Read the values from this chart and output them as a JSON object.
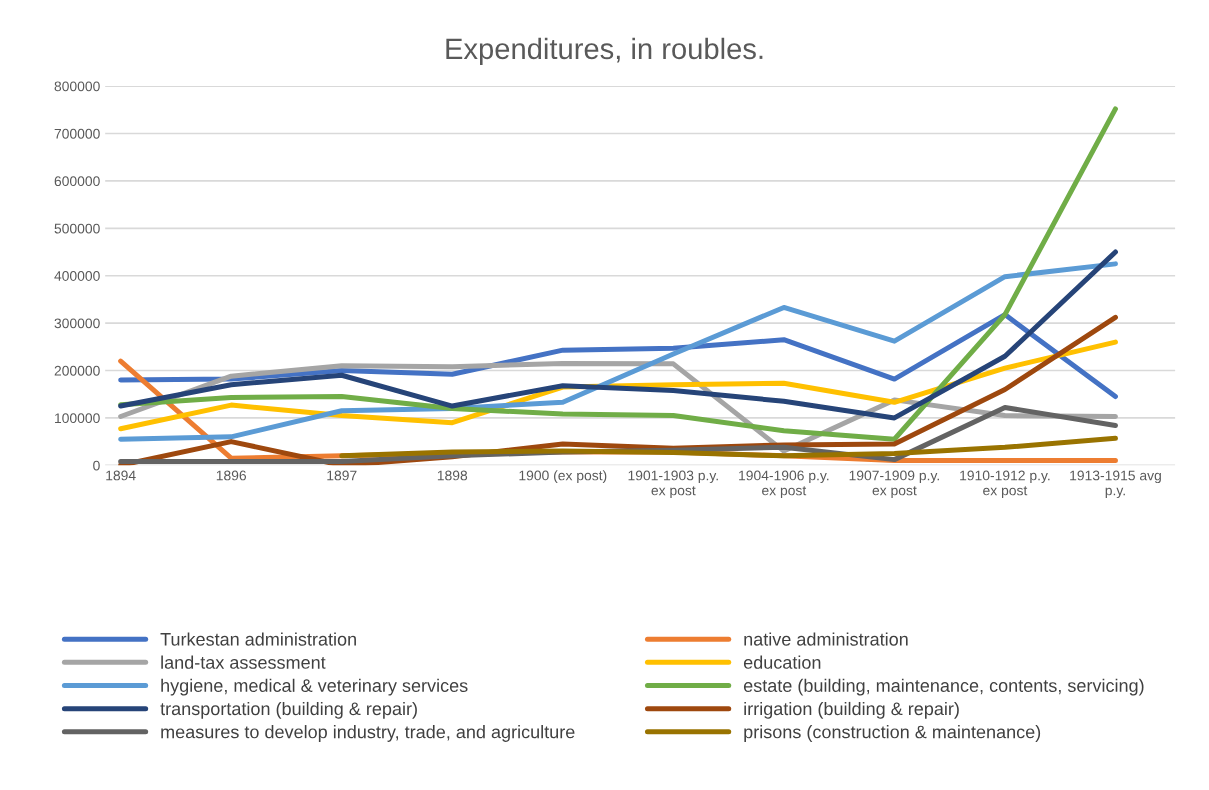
{
  "chart_data": {
    "type": "line",
    "title": "Expenditures, in roubles.",
    "categories": [
      "1894",
      "1896",
      "1897",
      "1898",
      "1900 (ex post)",
      "1901-1903 p.y.\nex post",
      "1904-1906 p.y.\nex post",
      "1907-1909 p.y.\nex post",
      "1910-1912 p.y.\nex post",
      "1913-1915 avg\np.y."
    ],
    "series": [
      {
        "name": "Turkestan administration",
        "color": "#4472c4",
        "values": [
          180000,
          182000,
          200000,
          192000,
          243000,
          247000,
          265000,
          182000,
          318000,
          145000
        ]
      },
      {
        "name": "native administration",
        "color": "#ed7d31",
        "values": [
          220000,
          15000,
          20000,
          25000,
          28000,
          28000,
          20000,
          10000,
          10000,
          10000
        ]
      },
      {
        "name": "land-tax assessment",
        "color": "#a5a5a5",
        "values": [
          103000,
          188000,
          210000,
          208000,
          215000,
          214000,
          30000,
          138000,
          105000,
          103000
        ]
      },
      {
        "name": "education",
        "color": "#ffc000",
        "values": [
          77000,
          127000,
          105000,
          90000,
          165000,
          170000,
          173000,
          133000,
          205000,
          260000
        ]
      },
      {
        "name": "hygiene, medical & veterinary services",
        "color": "#5b9bd5",
        "values": [
          55000,
          60000,
          115000,
          120000,
          133000,
          235000,
          333000,
          262000,
          398000,
          425000
        ]
      },
      {
        "name": "estate (building, maintenance, contents, servicing)",
        "color": "#70ad47",
        "values": [
          128000,
          143000,
          145000,
          120000,
          108000,
          105000,
          73000,
          55000,
          318000,
          752000
        ]
      },
      {
        "name": "transportation (building & repair)",
        "color": "#264478",
        "values": [
          125000,
          170000,
          190000,
          125000,
          168000,
          158000,
          135000,
          100000,
          230000,
          450000
        ]
      },
      {
        "name": "irrigation (building & repair)",
        "color": "#9e480e",
        "values": [
          0,
          50000,
          0,
          18000,
          45000,
          36000,
          43000,
          45000,
          160000,
          312000
        ]
      },
      {
        "name": "measures to develop industry, trade, and agriculture",
        "color": "#636363",
        "values": [
          8000,
          8000,
          8000,
          20000,
          28000,
          32000,
          38000,
          12000,
          122000,
          84000
        ]
      },
      {
        "name": "prisons (construction & maintenance)",
        "color": "#997300",
        "values": [
          null,
          null,
          20000,
          28000,
          30000,
          27000,
          20000,
          25000,
          38000,
          57000
        ]
      }
    ],
    "ylim": [
      0,
      800000
    ],
    "yticks": [
      0,
      100000,
      200000,
      300000,
      400000,
      500000,
      600000,
      700000,
      800000
    ],
    "grid": "y",
    "legend": "bottom"
  }
}
